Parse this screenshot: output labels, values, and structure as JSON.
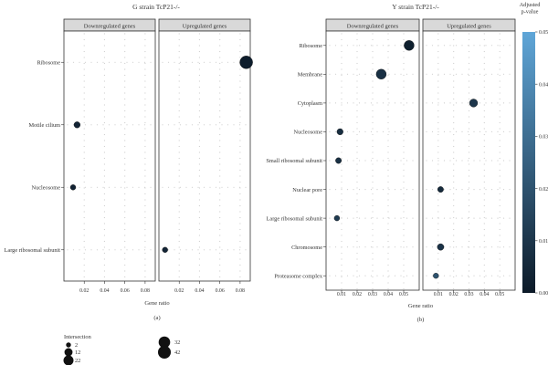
{
  "chart_data": [
    {
      "type": "scatter",
      "title": "G strain TcP21-/-",
      "xlabel": "Gene ratio",
      "sublabel": "(a)",
      "xlim": [
        0.0,
        0.09
      ],
      "xticks": [
        0.02,
        0.04,
        0.06,
        0.08
      ],
      "xtick_labels": [
        "0.02",
        "0.04",
        "0.06",
        "0.08"
      ],
      "facets": [
        "Downregulated genes",
        "Upregulated genes"
      ],
      "categories": [
        "Ribosome",
        "Motile cilium",
        "Nucleosome",
        "Large ribosomal subunit"
      ],
      "points": [
        {
          "category": "Ribosome",
          "facet": "Upregulated genes",
          "x": 0.086,
          "size": 42,
          "p": 0.001
        },
        {
          "category": "Motile cilium",
          "facet": "Downregulated genes",
          "x": 0.013,
          "size": 5,
          "p": 0.004
        },
        {
          "category": "Nucleosome",
          "facet": "Downregulated genes",
          "x": 0.009,
          "size": 3,
          "p": 0.003
        },
        {
          "category": "Large ribosomal subunit",
          "facet": "Upregulated genes",
          "x": 0.006,
          "size": 3,
          "p": 0.004
        }
      ]
    },
    {
      "type": "scatter",
      "title": "Y strain TcP21-/-",
      "xlabel": "Gene ratio",
      "sublabel": "(b)",
      "xlim": [
        0.0,
        0.06
      ],
      "xticks": [
        0.01,
        0.02,
        0.03,
        0.04,
        0.05
      ],
      "xtick_labels": [
        "0.01",
        "0.02",
        "0.03",
        "0.04",
        "0.05"
      ],
      "facets": [
        "Downregulated genes",
        "Upregulated genes"
      ],
      "categories": [
        "Ribosome",
        "Membrane",
        "Cytoplasm",
        "Nucleosome",
        "Small ribosomal subunit",
        "Nuclear pore",
        "Large ribosomal subunit",
        "Chromosome",
        "Proteasome complex"
      ],
      "points": [
        {
          "category": "Ribosome",
          "facet": "Downregulated genes",
          "x": 0.0535,
          "size": 22,
          "p": 0.002
        },
        {
          "category": "Membrane",
          "facet": "Downregulated genes",
          "x": 0.0355,
          "size": 22,
          "p": 0.008
        },
        {
          "category": "Cytoplasm",
          "facet": "Upregulated genes",
          "x": 0.033,
          "size": 12,
          "p": 0.01
        },
        {
          "category": "Nucleosome",
          "facet": "Downregulated genes",
          "x": 0.009,
          "size": 5,
          "p": 0.007
        },
        {
          "category": "Small ribosomal subunit",
          "facet": "Downregulated genes",
          "x": 0.008,
          "size": 4,
          "p": 0.008
        },
        {
          "category": "Nuclear pore",
          "facet": "Upregulated genes",
          "x": 0.0115,
          "size": 4,
          "p": 0.006
        },
        {
          "category": "Large ribosomal subunit",
          "facet": "Downregulated genes",
          "x": 0.007,
          "size": 3,
          "p": 0.012
        },
        {
          "category": "Chromosome",
          "facet": "Upregulated genes",
          "x": 0.0115,
          "size": 6,
          "p": 0.009
        },
        {
          "category": "Proteasome complex",
          "facet": "Upregulated genes",
          "x": 0.0085,
          "size": 3,
          "p": 0.02
        }
      ]
    }
  ],
  "colorbar": {
    "title_lines": [
      "Adjusted",
      "p-value"
    ],
    "ticks": [
      0.0,
      0.01,
      0.02,
      0.03,
      0.04,
      0.05
    ],
    "tick_labels": [
      "0.00",
      "0.01",
      "0.02",
      "0.03",
      "0.04",
      "0.05"
    ],
    "low_color": "#0c1a28",
    "high_color": "#5fa6d8"
  },
  "size_legend": {
    "title": "Intersection",
    "values": [
      2,
      12,
      22,
      32,
      42
    ],
    "labels": [
      "2",
      "12",
      "22",
      "32",
      "42"
    ]
  },
  "colors": {
    "strip_fill": "#d9d9d9",
    "grid_dot": "#cfcfcf",
    "point_low": "#0c1a28",
    "point_high": "#5fa6d8"
  }
}
